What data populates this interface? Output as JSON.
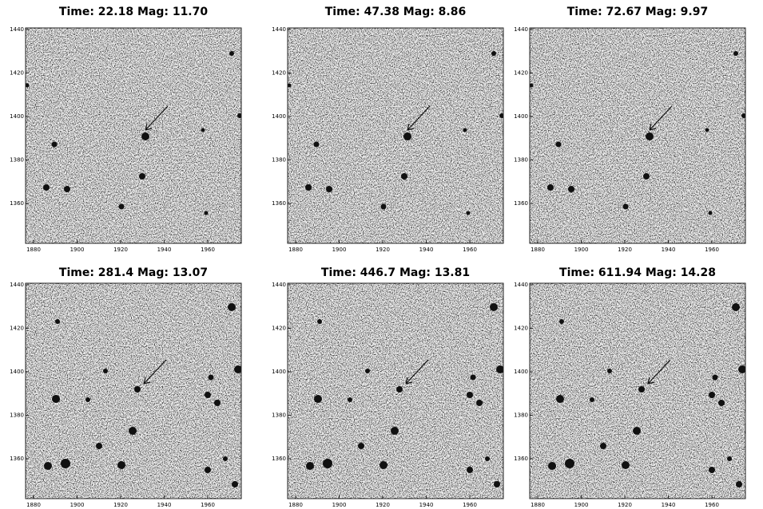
{
  "panels": [
    {
      "title": "Time: 22.18 Mag: 11.70",
      "xticks": [
        1880,
        1900,
        1920,
        1940,
        1960
      ],
      "yticks": [
        1440,
        1420,
        1400,
        1380,
        1360
      ]
    },
    {
      "title": "Time: 47.38 Mag: 8.86",
      "xticks": [
        1880,
        1900,
        1920,
        1940,
        1960
      ],
      "yticks": [
        1440,
        1420,
        1400,
        1380,
        1360
      ]
    },
    {
      "title": "Time: 72.67 Mag: 9.97",
      "xticks": [
        1880,
        1900,
        1920,
        1940,
        1960
      ],
      "yticks": [
        1440,
        1420,
        1400,
        1380,
        1360
      ]
    },
    {
      "title": "Time: 281.4 Mag: 13.07",
      "xticks": [
        1880,
        1900,
        1920,
        1940,
        1960
      ],
      "yticks": [
        1440,
        1420,
        1400,
        1380,
        1360
      ]
    },
    {
      "title": "Time: 446.7 Mag: 13.81",
      "xticks": [
        1880,
        1900,
        1920,
        1940,
        1960
      ],
      "yticks": [
        1440,
        1420,
        1400,
        1380,
        1360
      ]
    },
    {
      "title": "Time: 611.94 Mag: 14.28",
      "xticks": [
        1880,
        1900,
        1920,
        1940,
        1960
      ],
      "yticks": [
        1440,
        1420,
        1400,
        1380,
        1360
      ]
    }
  ]
}
